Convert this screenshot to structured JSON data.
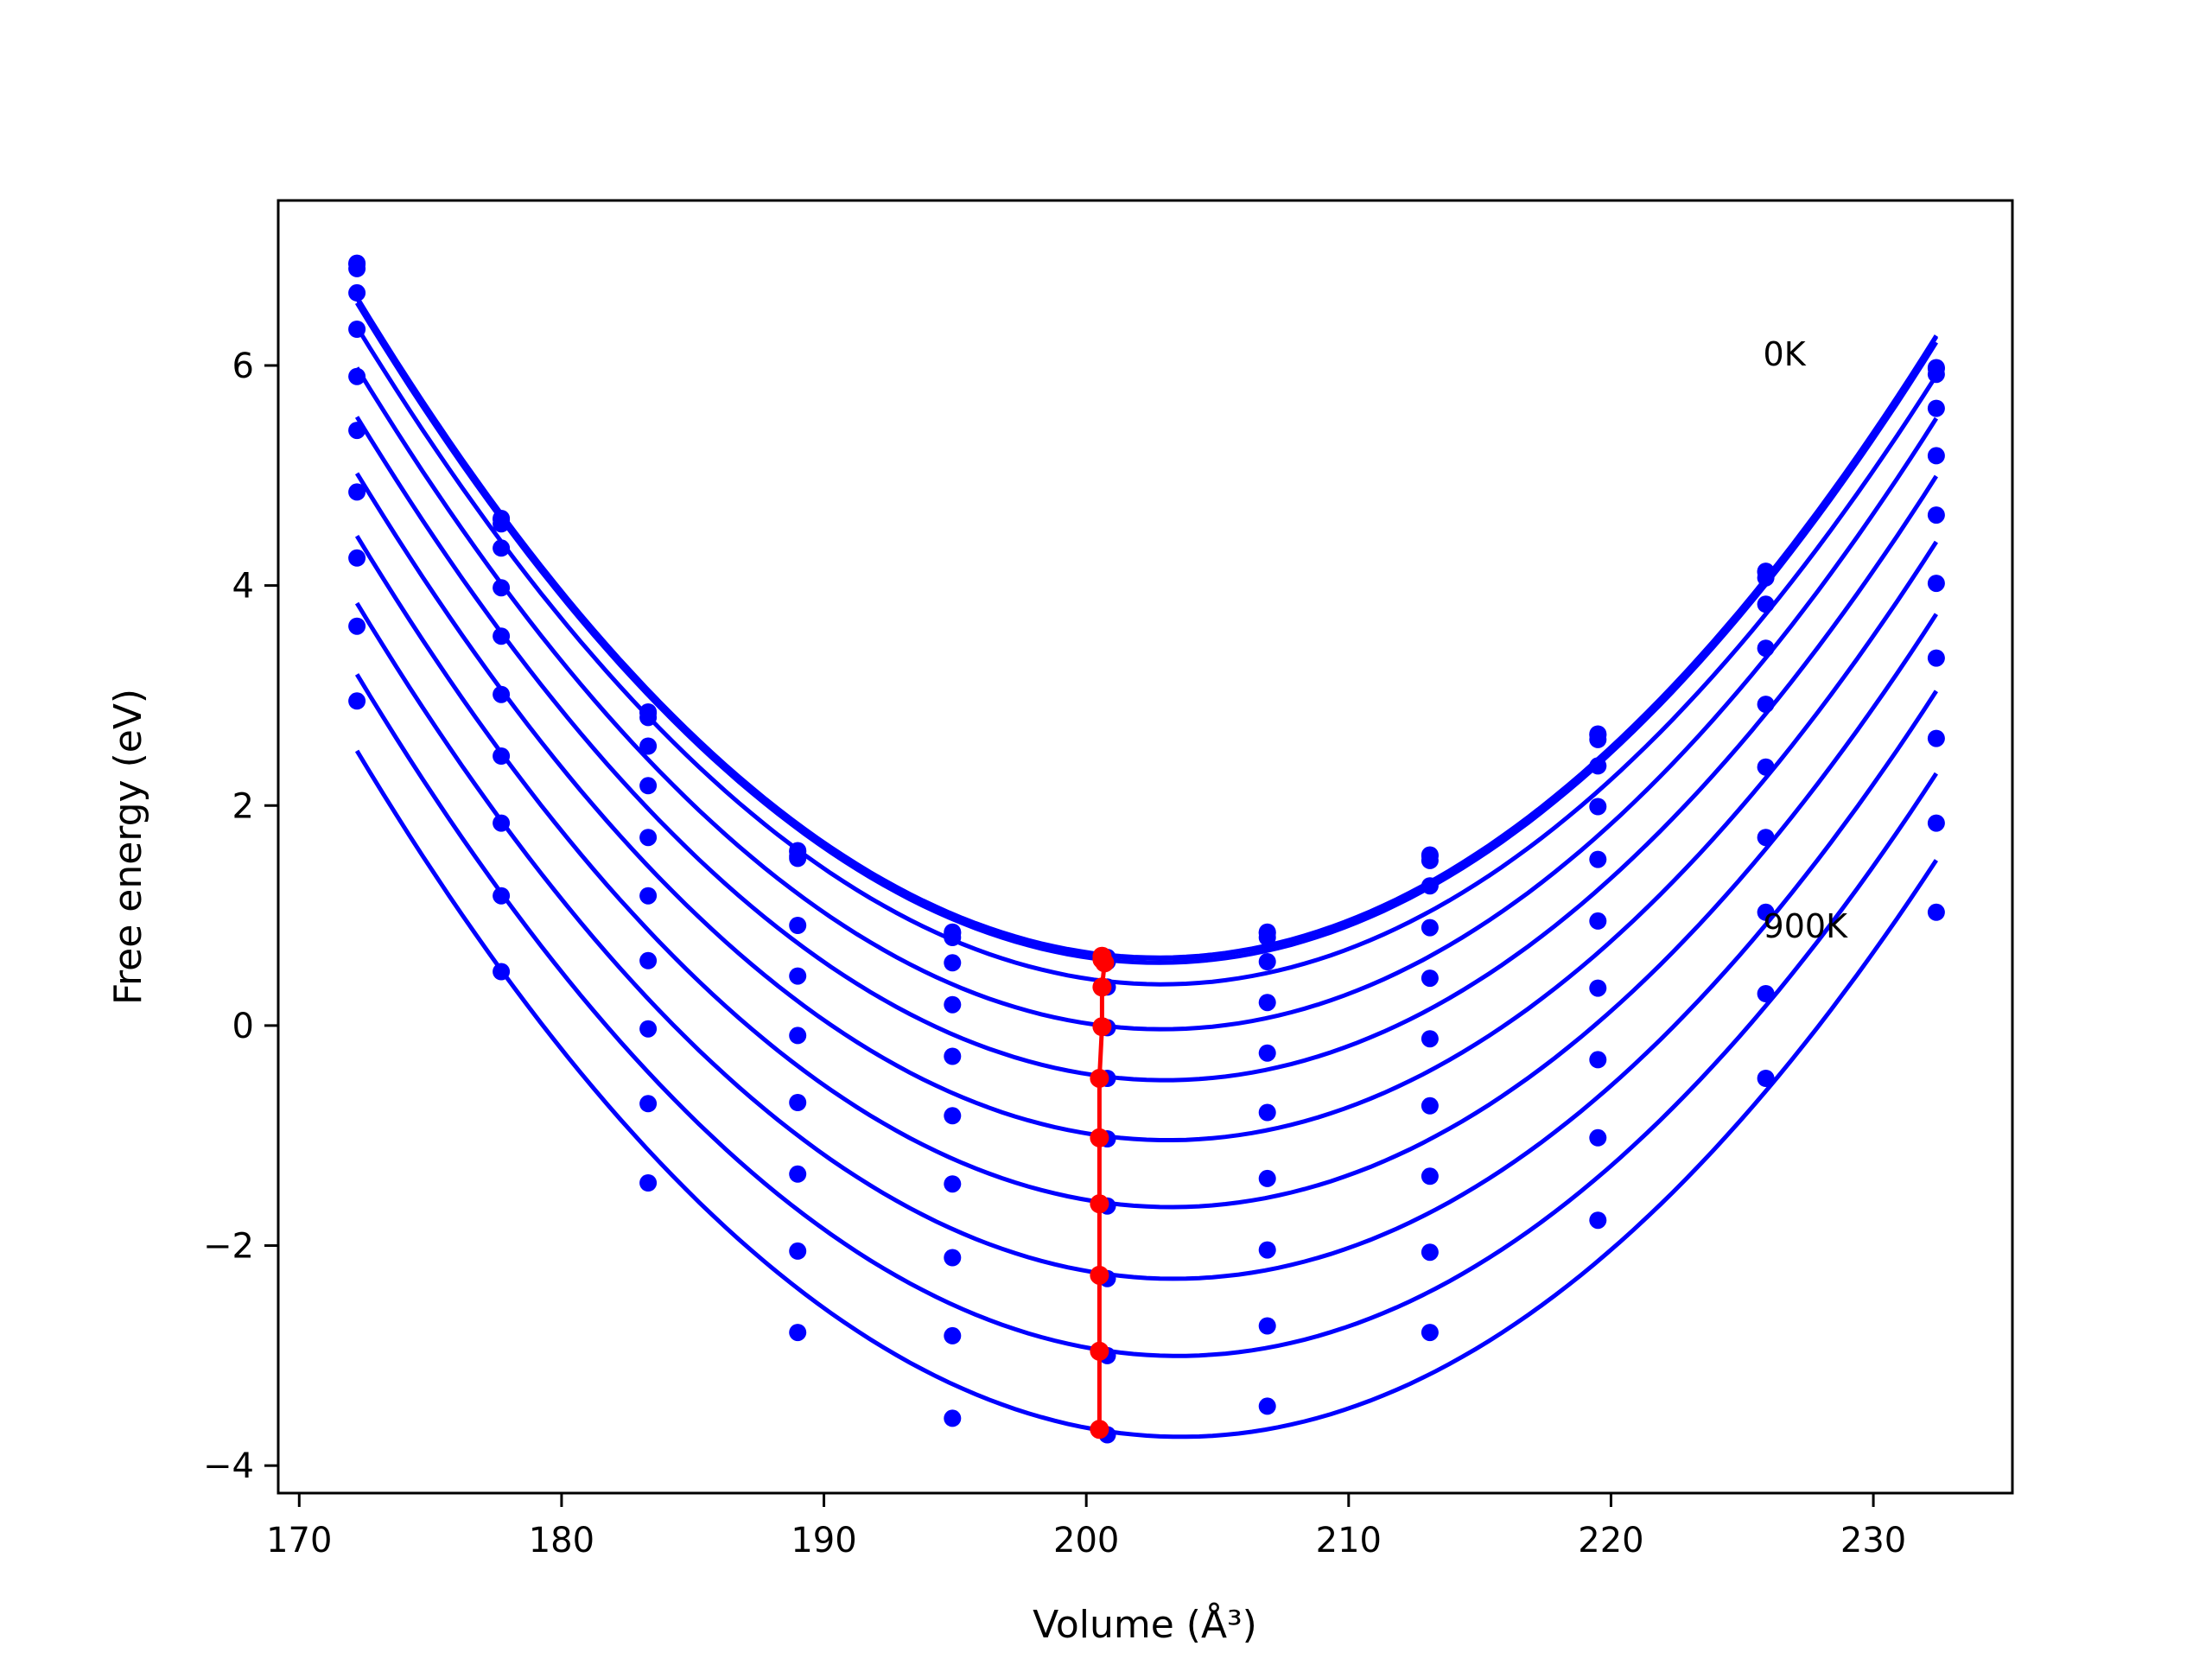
{
  "chart_data": {
    "type": "line",
    "title": "",
    "xlabel": "Volume (Å³)",
    "ylabel": "Free energy (eV)",
    "xlim": [
      169.2,
      235.3
    ],
    "ylim": [
      -4.25,
      7.5
    ],
    "xticks": [
      170,
      180,
      190,
      200,
      210,
      220,
      230
    ],
    "yticks": [
      -4,
      -2,
      0,
      2,
      4,
      6
    ],
    "ytick_labels": [
      "−4",
      "−2",
      "0",
      "2",
      "4",
      "6"
    ],
    "grid": false,
    "legend": "none",
    "colors": {
      "curves": "#0000ff",
      "equilibrium": "#ff0000",
      "frame": "#000000"
    },
    "annotations": [
      {
        "text": "0K",
        "x": 225.8,
        "y": 6.0
      },
      {
        "text": "900K",
        "x": 225.8,
        "y": 0.8
      }
    ],
    "volumes": [
      172.2,
      177.7,
      183.3,
      189.0,
      194.9,
      200.8,
      206.9,
      213.1,
      219.5,
      225.9,
      232.4
    ],
    "series": [
      {
        "values": [
          6.93,
          4.61,
          2.85,
          1.59,
          0.85,
          0.62,
          0.85,
          1.55,
          2.65,
          4.13,
          5.98
        ]
      },
      {
        "values": [
          6.92,
          4.6,
          2.84,
          1.58,
          0.84,
          0.61,
          0.84,
          1.54,
          2.64,
          4.12,
          5.97
        ]
      },
      {
        "values": [
          6.88,
          4.56,
          2.8,
          1.54,
          0.8,
          0.58,
          0.8,
          1.5,
          2.6,
          4.07,
          5.92
        ]
      },
      {
        "values": [
          6.66,
          4.34,
          2.54,
          1.52,
          0.57,
          0.35,
          0.58,
          1.27,
          2.36,
          3.83,
          5.61
        ]
      },
      {
        "values": [
          6.33,
          3.98,
          2.18,
          0.91,
          0.19,
          -0.02,
          0.21,
          0.89,
          1.99,
          3.43,
          5.18
        ]
      },
      {
        "values": [
          5.9,
          3.54,
          1.71,
          0.45,
          -0.28,
          -0.48,
          -0.25,
          0.43,
          1.51,
          2.92,
          4.64
        ]
      },
      {
        "values": [
          5.41,
          3.01,
          1.18,
          -0.09,
          -0.82,
          -1.03,
          -0.79,
          -0.12,
          0.95,
          2.35,
          4.02
        ]
      },
      {
        "values": [
          4.85,
          2.45,
          0.59,
          -0.7,
          -1.44,
          -1.64,
          -1.39,
          -0.73,
          0.34,
          1.71,
          3.34
        ]
      },
      {
        "values": [
          4.25,
          1.84,
          -0.03,
          -1.35,
          -2.11,
          -2.3,
          -2.04,
          -1.37,
          -0.31,
          1.03,
          2.61
        ]
      },
      {
        "values": [
          3.63,
          1.18,
          -0.71,
          -2.05,
          -2.82,
          -3.0,
          -2.73,
          -2.06,
          -1.02,
          0.29,
          1.84
        ]
      },
      {
        "values": [
          2.95,
          0.49,
          -1.43,
          -2.79,
          -3.57,
          -3.72,
          -3.46,
          -2.79,
          -1.77,
          -0.48,
          1.03
        ]
      }
    ],
    "equilibrium": {
      "x": [
        200.6,
        200.6,
        200.7,
        200.6,
        200.6,
        200.5,
        200.5,
        200.5,
        200.5,
        200.5,
        200.5
      ],
      "y": [
        0.63,
        0.6,
        0.57,
        0.35,
        -0.01,
        -0.48,
        -1.02,
        -1.62,
        -2.27,
        -2.96,
        -3.67
      ]
    }
  }
}
